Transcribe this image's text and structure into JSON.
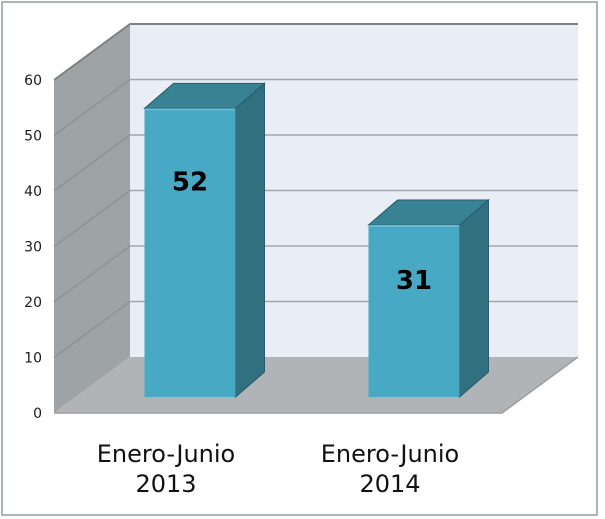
{
  "chart_data": {
    "type": "bar",
    "style": "3d-clustered-column",
    "title": "",
    "xlabel": "",
    "ylabel": "",
    "categories": [
      [
        "Enero-Junio",
        "2013"
      ],
      [
        "Enero-Junio",
        "2014"
      ]
    ],
    "values": [
      52,
      31
    ],
    "data_labels": [
      "52",
      "31"
    ],
    "label_offset_y": [
      74,
      56
    ],
    "yticks": [
      0,
      10,
      20,
      30,
      40,
      50,
      60
    ],
    "ylim": [
      0,
      60
    ],
    "grid": true,
    "legend": false,
    "colors": {
      "bar_front": "#48a9c5",
      "bar_top": "#388294",
      "bar_side": "#30707f",
      "bar_edge": "#265d6d",
      "bar_highlight": "#79c3d5",
      "back_wall": "#e9eef6",
      "side_wall": "#9ea3a6",
      "floor": "#b1b4b7",
      "gridline_back": "#a1a6af",
      "gridline_wall": "#8d9295",
      "wall_edge": "#7d8184",
      "floor_edge": "#9a9ea1",
      "text": "#000000",
      "border": "#9aa0a3"
    }
  }
}
